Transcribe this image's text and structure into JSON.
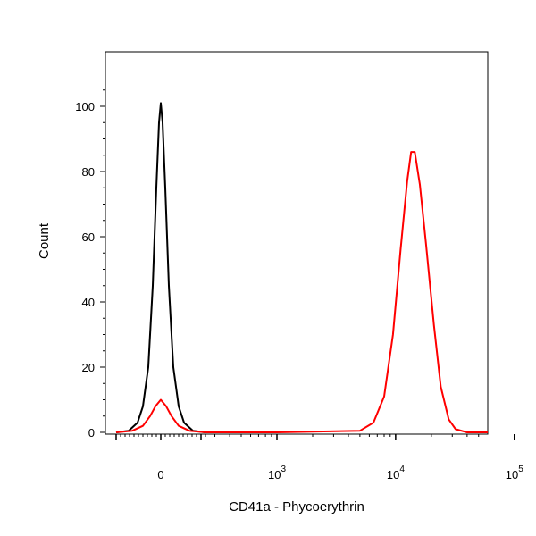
{
  "chart_data": {
    "type": "line",
    "title": "",
    "xlabel": "CD41a - Phycoerythrin",
    "ylabel": "Count",
    "x_scale": "biexponential",
    "ylim": [
      0,
      105
    ],
    "y_ticks": [
      0,
      20,
      40,
      60,
      80,
      100
    ],
    "x_ticks": [
      {
        "value": 0,
        "base": "0",
        "exp": ""
      },
      {
        "value": 1000,
        "base": "10",
        "exp": "3"
      },
      {
        "value": 10000,
        "base": "10",
        "exp": "4"
      },
      {
        "value": 100000,
        "base": "10",
        "exp": "5"
      }
    ],
    "grid": false,
    "series": [
      {
        "color": "#000000",
        "x": [
          -250,
          -180,
          -130,
          -100,
          -70,
          -45,
          -25,
          -10,
          0,
          10,
          25,
          45,
          70,
          100,
          130,
          180,
          250
        ],
        "y": [
          0,
          0.5,
          3,
          8,
          20,
          45,
          75,
          95,
          101,
          95,
          75,
          45,
          20,
          8,
          3,
          0.5,
          0
        ]
      },
      {
        "color": "#ff0000",
        "x": [
          -250,
          -160,
          -100,
          -60,
          -30,
          0,
          30,
          60,
          100,
          160,
          250,
          1000,
          5000,
          6500,
          8000,
          9500,
          11000,
          12500,
          13500,
          14500,
          16000,
          18000,
          21000,
          24000,
          28000,
          32000,
          40000,
          60000,
          100000,
          200000
        ],
        "y": [
          0,
          0.5,
          2,
          5,
          8,
          10,
          8,
          5,
          2,
          0.5,
          0,
          0,
          0.5,
          3,
          11,
          30,
          56,
          77,
          86,
          86,
          76,
          58,
          33,
          14,
          4,
          1,
          0,
          0,
          0,
          0
        ]
      }
    ]
  }
}
